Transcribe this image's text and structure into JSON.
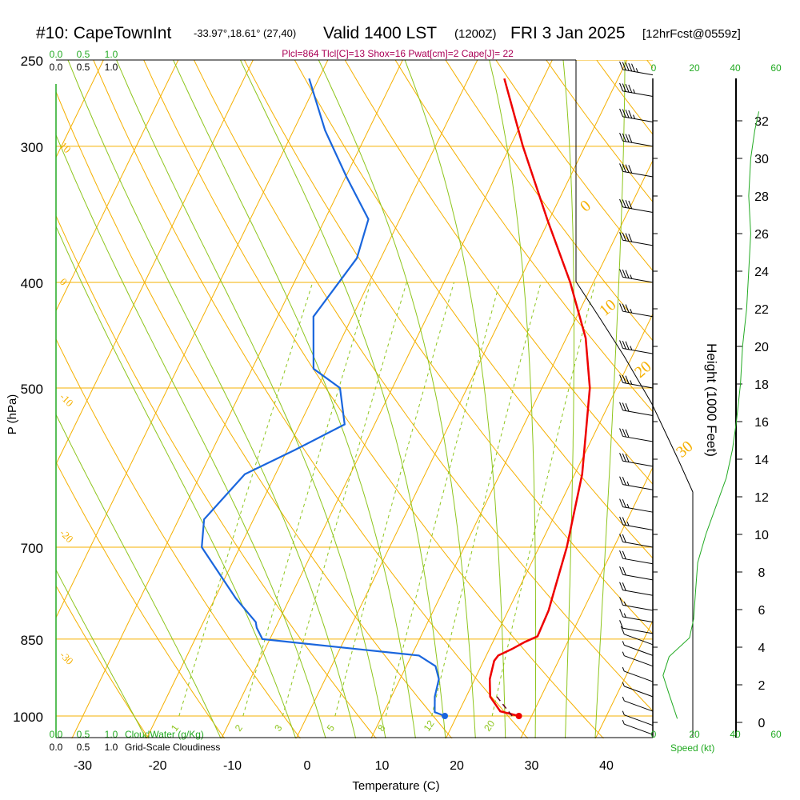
{
  "header": {
    "station": "#10: CapeTownInt",
    "coords": "-33.97°,18.61° (27,40)",
    "valid": "Valid 1400 LST",
    "zulu": "(1200Z)",
    "date": "FRI 3 Jan 2025",
    "forecast": "[12hrFcst@0559z]"
  },
  "stats": "Plcl=864 Tlcl[C]=13 Shox=16 Pwat[cm]=2 Cape[J]= 22",
  "scales": {
    "cloud_water_ticks": [
      "0.0",
      "0.5",
      "1.0"
    ],
    "cloud_water_label": "CloudWater (g/Kg)",
    "cloudiness_ticks": [
      "0.0",
      "0.5",
      "1.0"
    ],
    "cloudiness_label": "Grid-Scale Cloudiness",
    "speed_ticks": [
      "0",
      "20",
      "40",
      "60"
    ],
    "speed_label": "Speed (kt)"
  },
  "colors": {
    "isotherm": "#f5b000",
    "dry_adiabat": "#8ec51d",
    "moist_adiabat": "#8ec51d",
    "mixing_ratio": "#8ec51d",
    "temperature": "#ee0000",
    "dewpoint": "#1a66dd",
    "speed": "#22aa22",
    "stats": "#aa0055",
    "green_text": "#22aa22"
  },
  "chart_data": {
    "type": "skew-t",
    "ylabel": "P (hPa)",
    "xlabel": "Temperature (C)",
    "y2label": "Height (1000 Feet)",
    "pressure_ticks": [
      250,
      300,
      400,
      500,
      700,
      850,
      1000
    ],
    "temperature_ticks": [
      -30,
      -20,
      -10,
      0,
      10,
      20,
      30,
      40
    ],
    "height_ticks": [
      0,
      2,
      4,
      6,
      8,
      10,
      12,
      14,
      16,
      18,
      20,
      22,
      24,
      26,
      28,
      30,
      32
    ],
    "xlim": [
      -35,
      46
    ],
    "plim": [
      1050,
      250
    ],
    "dry_adiabat_labels": [
      {
        "text": "10",
        "p": 300
      },
      {
        "text": "0",
        "p": 400
      },
      {
        "text": "-10",
        "p": 510
      },
      {
        "text": "-20",
        "p": 680
      },
      {
        "text": "-30",
        "p": 880
      }
    ],
    "moist_adiabat_labels": [
      {
        "text": "0",
        "p": 345
      },
      {
        "text": "10",
        "p": 430
      },
      {
        "text": "20",
        "p": 490
      },
      {
        "text": "30",
        "p": 580
      }
    ],
    "mixing_ratio_labels": [
      "1",
      "2",
      "3",
      "5",
      "8",
      "12",
      "20"
    ],
    "temperature": [
      {
        "p": 1000,
        "t": 28.3
      },
      {
        "p": 990,
        "t": 25.5
      },
      {
        "p": 960,
        "t": 23.2
      },
      {
        "p": 925,
        "t": 22.0
      },
      {
        "p": 890,
        "t": 21.4
      },
      {
        "p": 880,
        "t": 21.6
      },
      {
        "p": 868,
        "t": 23.0
      },
      {
        "p": 855,
        "t": 24.3
      },
      {
        "p": 845,
        "t": 25.6
      },
      {
        "p": 800,
        "t": 25.4
      },
      {
        "p": 770,
        "t": 24.9
      },
      {
        "p": 700,
        "t": 23.7
      },
      {
        "p": 600,
        "t": 21.0
      },
      {
        "p": 500,
        "t": 16.4
      },
      {
        "p": 450,
        "t": 12.6
      },
      {
        "p": 400,
        "t": 6.9
      },
      {
        "p": 350,
        "t": -0.3
      },
      {
        "p": 300,
        "t": -8.3
      },
      {
        "p": 260,
        "t": -15.2
      }
    ],
    "dewpoint": [
      {
        "p": 1000,
        "t": 18.4
      },
      {
        "p": 992,
        "t": 16.8
      },
      {
        "p": 960,
        "t": 15.8
      },
      {
        "p": 925,
        "t": 15.2
      },
      {
        "p": 900,
        "t": 13.9
      },
      {
        "p": 880,
        "t": 11.0
      },
      {
        "p": 865,
        "t": 0.0
      },
      {
        "p": 850,
        "t": -11.0
      },
      {
        "p": 830,
        "t": -12.5
      },
      {
        "p": 820,
        "t": -13.0
      },
      {
        "p": 780,
        "t": -17.2
      },
      {
        "p": 700,
        "t": -25.1
      },
      {
        "p": 660,
        "t": -26.6
      },
      {
        "p": 600,
        "t": -24.1
      },
      {
        "p": 570,
        "t": -19.0
      },
      {
        "p": 540,
        "t": -14.0
      },
      {
        "p": 500,
        "t": -17.0
      },
      {
        "p": 480,
        "t": -21.8
      },
      {
        "p": 430,
        "t": -25.2
      },
      {
        "p": 380,
        "t": -23.2
      },
      {
        "p": 350,
        "t": -24.2
      },
      {
        "p": 320,
        "t": -29.9
      },
      {
        "p": 290,
        "t": -35.8
      },
      {
        "p": 260,
        "t": -41.3
      }
    ],
    "surface_points": {
      "temperature": 28.3,
      "dewpoint": 18.4,
      "p": 1000
    },
    "parcel_trace": [
      {
        "p": 1000,
        "t": 27.4
      },
      {
        "p": 960,
        "t": 24.1
      }
    ],
    "wind_speed_kt": [
      {
        "h": 0.2,
        "v": 12
      },
      {
        "h": 1.5,
        "v": 8
      },
      {
        "h": 2.5,
        "v": 5
      },
      {
        "h": 3.5,
        "v": 8
      },
      {
        "h": 4.5,
        "v": 18
      },
      {
        "h": 5.5,
        "v": 20
      },
      {
        "h": 7,
        "v": 21
      },
      {
        "h": 8.5,
        "v": 22
      },
      {
        "h": 10,
        "v": 26
      },
      {
        "h": 11.5,
        "v": 31
      },
      {
        "h": 13,
        "v": 36
      },
      {
        "h": 14.5,
        "v": 39
      },
      {
        "h": 16,
        "v": 41
      },
      {
        "h": 18,
        "v": 43
      },
      {
        "h": 20,
        "v": 44
      },
      {
        "h": 22,
        "v": 46
      },
      {
        "h": 24,
        "v": 47
      },
      {
        "h": 26,
        "v": 48
      },
      {
        "h": 28,
        "v": 47
      },
      {
        "h": 30,
        "v": 48
      },
      {
        "h": 31.5,
        "v": 50
      },
      {
        "h": 32.5,
        "v": 52
      }
    ],
    "wind_barbs": [
      {
        "p": 258,
        "knots": 55
      },
      {
        "p": 270,
        "knots": 45
      },
      {
        "p": 285,
        "knots": 45
      },
      {
        "p": 300,
        "knots": 40
      },
      {
        "p": 320,
        "knots": 40
      },
      {
        "p": 345,
        "knots": 40
      },
      {
        "p": 370,
        "knots": 40
      },
      {
        "p": 400,
        "knots": 35
      },
      {
        "p": 430,
        "knots": 35
      },
      {
        "p": 465,
        "knots": 35
      },
      {
        "p": 500,
        "knots": 35
      },
      {
        "p": 530,
        "knots": 30
      },
      {
        "p": 560,
        "knots": 30
      },
      {
        "p": 590,
        "knots": 30
      },
      {
        "p": 620,
        "knots": 25
      },
      {
        "p": 650,
        "knots": 25
      },
      {
        "p": 675,
        "knots": 25
      },
      {
        "p": 700,
        "knots": 20
      },
      {
        "p": 725,
        "knots": 20
      },
      {
        "p": 750,
        "knots": 20
      },
      {
        "p": 775,
        "knots": 20
      },
      {
        "p": 800,
        "knots": 15
      },
      {
        "p": 820,
        "knots": 15
      },
      {
        "p": 840,
        "knots": 10
      },
      {
        "p": 860,
        "knots": 10
      },
      {
        "p": 880,
        "knots": 5
      },
      {
        "p": 900,
        "knots": 5
      },
      {
        "p": 930,
        "knots": 5
      },
      {
        "p": 960,
        "knots": 5
      },
      {
        "p": 990,
        "knots": 5
      },
      {
        "p": 1020,
        "knots": 5
      },
      {
        "p": 1040,
        "knots": 5
      }
    ]
  }
}
